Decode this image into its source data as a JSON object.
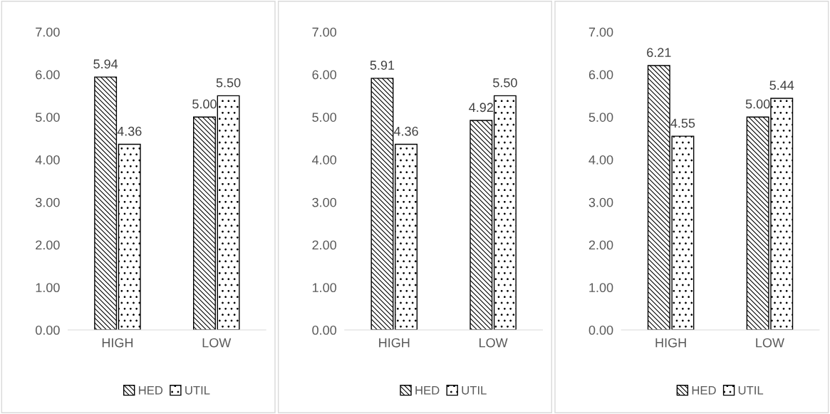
{
  "chart_data": [
    {
      "type": "bar",
      "categories": [
        "HIGH",
        "LOW"
      ],
      "series": [
        {
          "name": "HED",
          "color": "#000000",
          "values": [
            5.94,
            5.0
          ]
        },
        {
          "name": "UTIL",
          "color": "#000000",
          "values": [
            4.36,
            5.5
          ]
        }
      ],
      "ylim": [
        0,
        7
      ],
      "yticks": [
        {
          "value": 0,
          "label": "0.00"
        },
        {
          "value": 1,
          "label": "1.00"
        },
        {
          "value": 2,
          "label": "2.00"
        },
        {
          "value": 3,
          "label": "3.00"
        },
        {
          "value": 4,
          "label": "4.00"
        },
        {
          "value": 5,
          "label": "5.00"
        },
        {
          "value": 6,
          "label": "6.00"
        },
        {
          "value": 7,
          "label": "7.00"
        }
      ],
      "value_labels": [
        [
          "5.94",
          "5.00"
        ],
        [
          "4.36",
          "5.50"
        ]
      ],
      "legend": "bottom",
      "grid": false
    },
    {
      "type": "bar",
      "categories": [
        "HIGH",
        "LOW"
      ],
      "series": [
        {
          "name": "HED",
          "color": "#000000",
          "values": [
            5.91,
            4.92
          ]
        },
        {
          "name": "UTIL",
          "color": "#000000",
          "values": [
            4.36,
            5.5
          ]
        }
      ],
      "ylim": [
        0,
        7
      ],
      "yticks": [
        {
          "value": 0,
          "label": "0.00"
        },
        {
          "value": 1,
          "label": "1.00"
        },
        {
          "value": 2,
          "label": "2.00"
        },
        {
          "value": 3,
          "label": "3.00"
        },
        {
          "value": 4,
          "label": "4.00"
        },
        {
          "value": 5,
          "label": "5.00"
        },
        {
          "value": 6,
          "label": "6.00"
        },
        {
          "value": 7,
          "label": "7.00"
        }
      ],
      "value_labels": [
        [
          "5.91",
          "4.92"
        ],
        [
          "4.36",
          "5.50"
        ]
      ],
      "legend": "bottom",
      "grid": false
    },
    {
      "type": "bar",
      "categories": [
        "HIGH",
        "LOW"
      ],
      "series": [
        {
          "name": "HED",
          "color": "#000000",
          "values": [
            6.21,
            5.0
          ]
        },
        {
          "name": "UTIL",
          "color": "#000000",
          "values": [
            4.55,
            5.44
          ]
        }
      ],
      "ylim": [
        0,
        7
      ],
      "yticks": [
        {
          "value": 0,
          "label": "0.00"
        },
        {
          "value": 1,
          "label": "1.00"
        },
        {
          "value": 2,
          "label": "2.00"
        },
        {
          "value": 3,
          "label": "3.00"
        },
        {
          "value": 4,
          "label": "4.00"
        },
        {
          "value": 5,
          "label": "5.00"
        },
        {
          "value": 6,
          "label": "6.00"
        },
        {
          "value": 7,
          "label": "7.00"
        }
      ],
      "value_labels": [
        [
          "6.21",
          "5.00"
        ],
        [
          "4.55",
          "5.44"
        ]
      ],
      "legend": "bottom",
      "grid": false
    }
  ]
}
